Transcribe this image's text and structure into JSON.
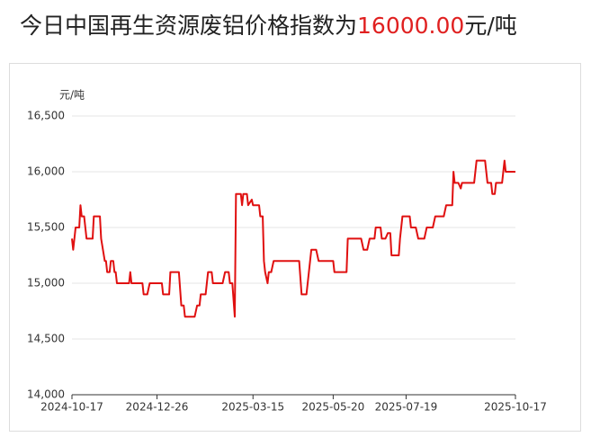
{
  "chart_data": {
    "type": "line",
    "title_prefix": "今日中国再生资源废铝价格指数为",
    "title_value": "16000.00",
    "title_suffix": "元/吨",
    "y_unit": "元/吨",
    "x": [
      "2024-10-17",
      "2024-10-18",
      "2024-10-20",
      "2024-10-23",
      "2024-10-24",
      "2024-10-25",
      "2024-10-27",
      "2024-10-29",
      "2024-11-03",
      "2024-11-04",
      "2024-11-09",
      "2024-11-10",
      "2024-11-13",
      "2024-11-14",
      "2024-11-15",
      "2024-11-17",
      "2024-11-18",
      "2024-11-20",
      "2024-11-21",
      "2024-11-22",
      "2024-11-23",
      "2024-12-03",
      "2024-12-04",
      "2024-12-05",
      "2024-12-14",
      "2024-12-15",
      "2024-12-18",
      "2024-12-20",
      "2024-12-30",
      "2024-12-31",
      "2025-01-05",
      "2025-01-06",
      "2025-01-13",
      "2025-01-15",
      "2025-01-17",
      "2025-01-18",
      "2025-01-26",
      "2025-01-28",
      "2025-01-30",
      "2025-01-31",
      "2025-02-04",
      "2025-02-06",
      "2025-02-09",
      "2025-02-10",
      "2025-02-18",
      "2025-02-20",
      "2025-02-23",
      "2025-02-24",
      "2025-02-26",
      "2025-02-28",
      "2025-03-01",
      "2025-03-05",
      "2025-03-06",
      "2025-03-07",
      "2025-03-10",
      "2025-03-11",
      "2025-03-14",
      "2025-03-15",
      "2025-03-20",
      "2025-03-21",
      "2025-03-23",
      "2025-03-24",
      "2025-03-25",
      "2025-03-27",
      "2025-03-28",
      "2025-03-30",
      "2025-04-01",
      "2025-04-22",
      "2025-04-24",
      "2025-04-28",
      "2025-04-30",
      "2025-05-02",
      "2025-05-06",
      "2025-05-08",
      "2025-05-20",
      "2025-05-21",
      "2025-05-31",
      "2025-06-01",
      "2025-06-12",
      "2025-06-14",
      "2025-06-17",
      "2025-06-19",
      "2025-06-23",
      "2025-06-24",
      "2025-06-28",
      "2025-06-29",
      "2025-07-02",
      "2025-07-04",
      "2025-07-06",
      "2025-07-07",
      "2025-07-13",
      "2025-07-14",
      "2025-07-16",
      "2025-07-22",
      "2025-07-23",
      "2025-07-27",
      "2025-07-29",
      "2025-08-03",
      "2025-08-05",
      "2025-08-10",
      "2025-08-12",
      "2025-08-19",
      "2025-08-21",
      "2025-08-26",
      "2025-08-27",
      "2025-08-28",
      "2025-08-31",
      "2025-09-02",
      "2025-09-03",
      "2025-09-13",
      "2025-09-15",
      "2025-09-22",
      "2025-09-24",
      "2025-09-27",
      "2025-09-28",
      "2025-09-30",
      "2025-10-01",
      "2025-10-06",
      "2025-10-08",
      "2025-10-09",
      "2025-10-17"
    ],
    "series": [
      {
        "name": "废铝价格指数",
        "color": "#e01010",
        "values": [
          15400,
          15300,
          15500,
          15500,
          15700,
          15600,
          15600,
          15400,
          15400,
          15600,
          15600,
          15400,
          15200,
          15200,
          15100,
          15100,
          15200,
          15200,
          15100,
          15100,
          15000,
          15000,
          15100,
          15000,
          15000,
          14900,
          14900,
          15000,
          15000,
          14900,
          14900,
          15100,
          15100,
          14800,
          14800,
          14700,
          14700,
          14800,
          14800,
          14900,
          14900,
          15100,
          15100,
          15000,
          15000,
          15100,
          15100,
          15000,
          15000,
          14700,
          15800,
          15800,
          15700,
          15800,
          15800,
          15700,
          15750,
          15700,
          15700,
          15600,
          15600,
          15200,
          15100,
          15000,
          15100,
          15100,
          15200,
          15200,
          14900,
          14900,
          15100,
          15300,
          15300,
          15200,
          15200,
          15100,
          15100,
          15400,
          15400,
          15300,
          15300,
          15400,
          15400,
          15500,
          15500,
          15400,
          15400,
          15450,
          15450,
          15250,
          15250,
          15400,
          15600,
          15600,
          15500,
          15500,
          15400,
          15400,
          15500,
          15500,
          15600,
          15600,
          15700,
          15700,
          16000,
          15900,
          15900,
          15850,
          15900,
          15900,
          16100,
          16100,
          15900,
          15900,
          15800,
          15800,
          15900,
          15900,
          16100,
          16000,
          16000
        ]
      }
    ],
    "xlim": [
      "2024-10-17",
      "2025-10-17"
    ],
    "xticks": [
      "2024-10-17",
      "2024-12-26",
      "2025-03-15",
      "2025-05-20",
      "2025-07-19",
      "2025-10-17"
    ],
    "ylim": [
      14000,
      16500
    ],
    "yticks": [
      {
        "value": 14000,
        "label": "14,000"
      },
      {
        "value": 14500,
        "label": "14,500"
      },
      {
        "value": 15000,
        "label": "15,000"
      },
      {
        "value": 15500,
        "label": "15,500"
      },
      {
        "value": 16000,
        "label": "16,000"
      },
      {
        "value": 16500,
        "label": "16,500"
      }
    ],
    "grid": true
  }
}
